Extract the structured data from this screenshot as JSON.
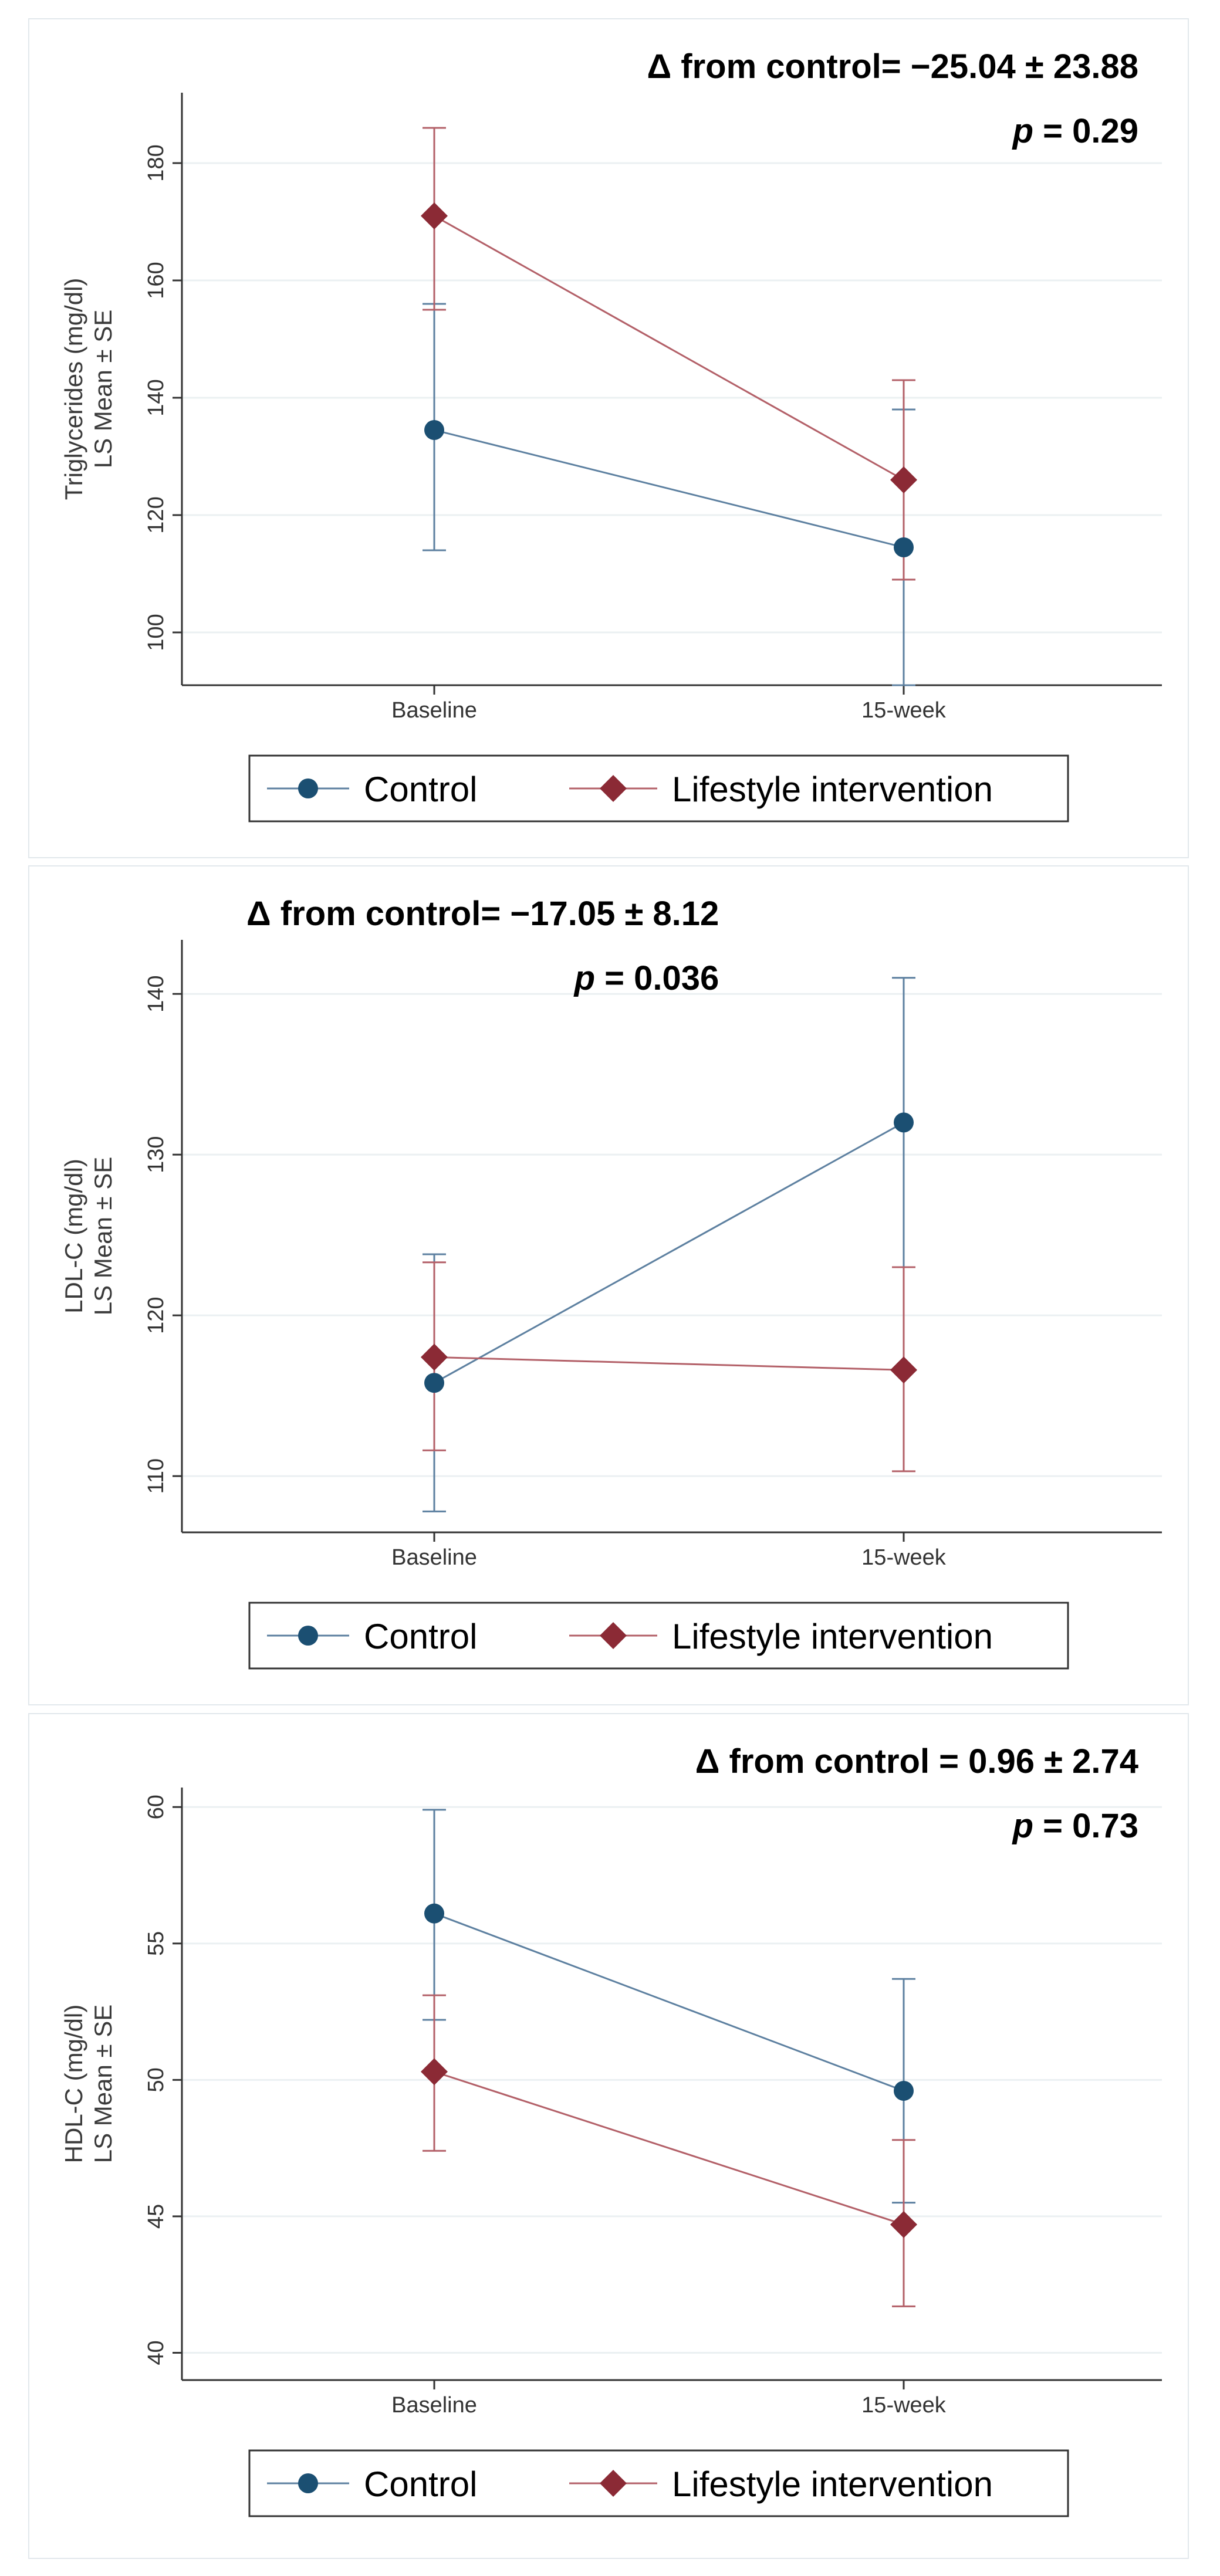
{
  "colors": {
    "control": "#1b4f72",
    "control_line": "#5d80a0",
    "lifestyle": "#8b2a35",
    "lifestyle_line": "#b36068",
    "grid": "#ebf0f2",
    "axis": "#333333"
  },
  "legend": {
    "control_label": "Control",
    "lifestyle_label": "Lifestyle intervention"
  },
  "chart_data": [
    {
      "type": "line",
      "ylabel_line1": "Triglycerides (mg/dl)",
      "ylabel_line2": "LS Mean ± SE",
      "categories": [
        "Baseline",
        "15-week"
      ],
      "ylim": [
        91,
        191
      ],
      "yticks": [
        100,
        120,
        140,
        160,
        180
      ],
      "grid": true,
      "legend_position": "bottom",
      "annotation_delta": "Δ from control= −25.04 ± 23.88",
      "annotation_p_label": "p",
      "annotation_p_value": " = 0.29",
      "annotation_align": "right",
      "series": [
        {
          "name": "Control",
          "marker": "circle",
          "values": [
            134.5,
            114.5
          ],
          "lower": [
            114,
            91
          ],
          "upper": [
            156,
            138
          ]
        },
        {
          "name": "Lifestyle intervention",
          "marker": "diamond",
          "values": [
            171,
            126
          ],
          "lower": [
            155,
            109
          ],
          "upper": [
            186,
            143
          ]
        }
      ]
    },
    {
      "type": "line",
      "ylabel_line1": "LDL-C (mg/dl)",
      "ylabel_line2": "LS Mean ± SE",
      "categories": [
        "Baseline",
        "15-week"
      ],
      "ylim": [
        106.5,
        143
      ],
      "yticks": [
        110,
        120,
        130,
        140
      ],
      "grid": true,
      "legend_position": "bottom",
      "annotation_delta": "Δ from control= −17.05 ± 8.12",
      "annotation_p_label": "p",
      "annotation_p_value": " = 0.036",
      "annotation_align": "left",
      "series": [
        {
          "name": "Control",
          "marker": "circle",
          "values": [
            115.8,
            132
          ],
          "lower": [
            107.8,
            123
          ],
          "upper": [
            123.8,
            141
          ]
        },
        {
          "name": "Lifestyle intervention",
          "marker": "diamond",
          "values": [
            117.4,
            116.6
          ],
          "lower": [
            111.6,
            110.3
          ],
          "upper": [
            123.3,
            123
          ]
        }
      ]
    },
    {
      "type": "line",
      "ylabel_line1": "HDL-C (mg/dl)",
      "ylabel_line2": "LS Mean ± SE",
      "categories": [
        "Baseline",
        "15-week"
      ],
      "ylim": [
        39,
        60.5
      ],
      "yticks": [
        40,
        45,
        50,
        55,
        60
      ],
      "grid": true,
      "legend_position": "bottom",
      "annotation_delta": "Δ from control = 0.96 ± 2.74",
      "annotation_p_label": "p",
      "annotation_p_value": " = 0.73",
      "annotation_align": "right",
      "series": [
        {
          "name": "Control",
          "marker": "circle",
          "values": [
            56.1,
            49.6
          ],
          "lower": [
            52.2,
            45.5
          ],
          "upper": [
            59.9,
            53.7
          ]
        },
        {
          "name": "Lifestyle intervention",
          "marker": "diamond",
          "values": [
            50.3,
            44.7
          ],
          "lower": [
            47.4,
            41.7
          ],
          "upper": [
            53.1,
            47.8
          ]
        }
      ]
    }
  ]
}
